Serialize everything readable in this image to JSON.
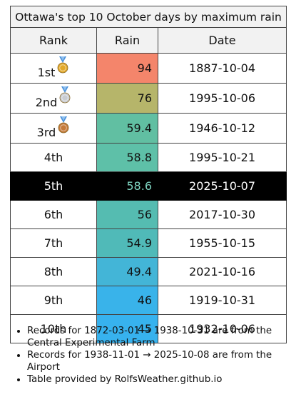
{
  "table": {
    "title": "Ottawa's top 10 October days by maximum rain",
    "headers": {
      "rank": "Rank",
      "rain": "Rain",
      "date": "Date"
    },
    "rows": [
      {
        "rank": "1st",
        "rain": "94",
        "date": "1887-10-04",
        "color": "#f4856b",
        "medal": "gold-medal-icon"
      },
      {
        "rank": "2nd",
        "rain": "76",
        "date": "1995-10-06",
        "color": "#b6b56a",
        "medal": "silver-medal-icon"
      },
      {
        "rank": "3rd",
        "rain": "59.4",
        "date": "1946-10-12",
        "color": "#61bfa2",
        "medal": "bronze-medal-icon"
      },
      {
        "rank": "4th",
        "rain": "58.8",
        "date": "1995-10-21",
        "color": "#5ec0a8"
      },
      {
        "rank": "5th",
        "rain": "58.6",
        "date": "2025-10-07",
        "color": "#000000",
        "highlight": true
      },
      {
        "rank": "6th",
        "rain": "56",
        "date": "2017-10-30",
        "color": "#55bcb1"
      },
      {
        "rank": "7th",
        "rain": "54.9",
        "date": "1955-10-15",
        "color": "#50bab8"
      },
      {
        "rank": "8th",
        "rain": "49.4",
        "date": "2021-10-16",
        "color": "#43b5d7"
      },
      {
        "rank": "9th",
        "rain": "46",
        "date": "1919-10-31",
        "color": "#39b3ea"
      },
      {
        "rank": "10th",
        "rain": "45",
        "date": "1932-10-06",
        "color": "#37b2ee"
      }
    ]
  },
  "notes": [
    "Records for 1872-03-01 → 1938-10-31 are from the Central Experimental Farm",
    "Records for 1938-11-01 → 2025-10-08 are from the Airport",
    "Table provided by RolfsWeather.github.io"
  ],
  "colors": {
    "medal_gold": "#e3a92a",
    "medal_silver": "#c9ccd1",
    "medal_bronze": "#c47a3a",
    "ribbon": "#4a90d9"
  }
}
